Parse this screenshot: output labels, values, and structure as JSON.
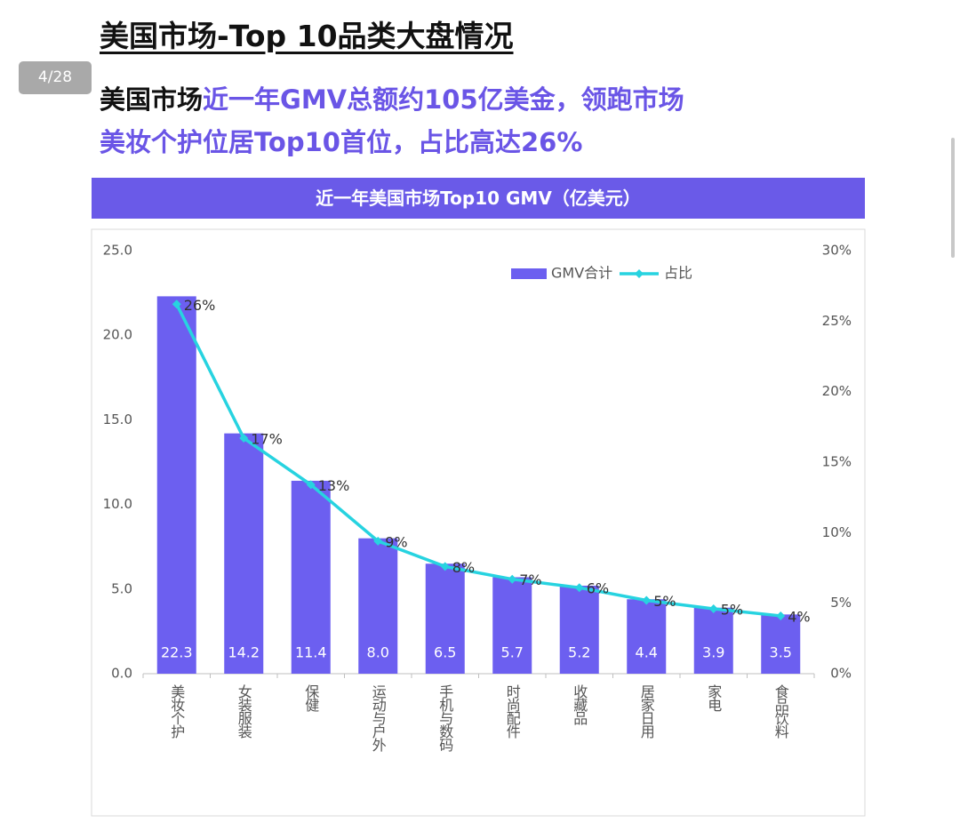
{
  "heading": "美国市场-Top 10品类大盘情况",
  "page_counter": "4/28",
  "summary": [
    "美国市场",
    "近一年GMV总额约105亿美金，领跑市场",
    "美妆个护位居Top10首位，占比高达26%"
  ],
  "chart_data": {
    "type": "bar",
    "title": "近一年美国市场Top10 GMV（亿美元）",
    "categories": [
      "美妆个护",
      "女装服装",
      "保健",
      "运动与户外",
      "手机与数码",
      "时尚配件",
      "收藏品",
      "居家日用",
      "家电",
      "食品饮料"
    ],
    "series": [
      {
        "name": "GMV合计",
        "type": "bar",
        "color": "#6c5ff0",
        "values": [
          22.3,
          14.2,
          11.4,
          8.0,
          6.5,
          5.7,
          5.2,
          4.4,
          3.9,
          3.5
        ],
        "value_labels": [
          "22.3",
          "14.2",
          "11.4",
          "8.0",
          "6.5",
          "5.7",
          "5.2",
          "4.4",
          "3.9",
          "3.5"
        ]
      },
      {
        "name": "占比",
        "type": "line",
        "axis": "y2",
        "color": "#27d3e0",
        "values": [
          26.2,
          16.7,
          13.4,
          9.4,
          7.6,
          6.7,
          6.1,
          5.2,
          4.6,
          4.1
        ],
        "value_labels": [
          "26%",
          "17%",
          "13%",
          "9%",
          "8%",
          "7%",
          "6%",
          "5%",
          "5%",
          "4%"
        ]
      }
    ],
    "ylim": [
      0,
      25
    ],
    "yticks": [
      {
        "value": 0,
        "label": "0.0"
      },
      {
        "value": 5,
        "label": "5.0"
      },
      {
        "value": 10,
        "label": "10.0"
      },
      {
        "value": 15,
        "label": "15.0"
      },
      {
        "value": 20,
        "label": "20.0"
      },
      {
        "value": 25,
        "label": "25.0"
      }
    ],
    "y2lim": [
      0,
      30
    ],
    "y2ticks": [
      {
        "value": 0,
        "label": "0%"
      },
      {
        "value": 5,
        "label": "5%"
      },
      {
        "value": 10,
        "label": "10%"
      },
      {
        "value": 15,
        "label": "15%"
      },
      {
        "value": 20,
        "label": "20%"
      },
      {
        "value": 25,
        "label": "25%"
      },
      {
        "value": 30,
        "label": "30%"
      }
    ],
    "legend": "top-right",
    "grid": false
  }
}
